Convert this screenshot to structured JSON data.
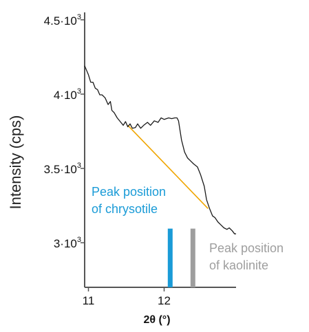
{
  "chart_data": {
    "type": "line",
    "xlabel": "2θ (°)",
    "ylabel": "Intensity (cps)",
    "xlim": [
      10.95,
      12.95
    ],
    "ylim": [
      2700,
      4550
    ],
    "x_ticks": [
      {
        "value": 11,
        "label": "11"
      },
      {
        "value": 12,
        "label": "12"
      }
    ],
    "y_ticks": [
      {
        "value": 3000,
        "mantissa": "3·10",
        "exponent": "3"
      },
      {
        "value": 3500,
        "mantissa": "3.5·10",
        "exponent": "3"
      },
      {
        "value": 4000,
        "mantissa": "4·10",
        "exponent": "3"
      },
      {
        "value": 4500,
        "mantissa": "4.5·10",
        "exponent": "3"
      }
    ],
    "series": [
      {
        "color": "#1a1a1a",
        "x": [
          10.95,
          11.0,
          11.03,
          11.06,
          11.09,
          11.12,
          11.15,
          11.18,
          11.22,
          11.26,
          11.29,
          11.31,
          11.34,
          11.38,
          11.42,
          11.46,
          11.49,
          11.52,
          11.55,
          11.58,
          11.62,
          11.65,
          11.69,
          11.73,
          11.78,
          11.82,
          11.87,
          11.92,
          11.96,
          12.0,
          12.03,
          12.06,
          12.1,
          12.14,
          12.17,
          12.19,
          12.23,
          12.27,
          12.31,
          12.35,
          12.39,
          12.44,
          12.48,
          12.53,
          12.56,
          12.6,
          12.64,
          12.67,
          12.71,
          12.75,
          12.79,
          12.83,
          12.86,
          12.9,
          12.93,
          12.95
        ],
        "y": [
          4190,
          4130,
          4080,
          4080,
          4040,
          4030,
          3995,
          3995,
          3975,
          3930,
          3950,
          3890,
          3875,
          3840,
          3815,
          3790,
          3815,
          3780,
          3800,
          3770,
          3775,
          3800,
          3770,
          3790,
          3810,
          3790,
          3820,
          3810,
          3840,
          3830,
          3835,
          3840,
          3835,
          3840,
          3840,
          3820,
          3690,
          3610,
          3570,
          3550,
          3530,
          3510,
          3460,
          3380,
          3290,
          3230,
          3180,
          3170,
          3140,
          3120,
          3100,
          3090,
          3100,
          3080,
          3060,
          3060
        ]
      }
    ],
    "baseline": {
      "color": "#f0a500",
      "x": [
        11.52,
        12.58
      ],
      "y": [
        3790,
        3230
      ]
    },
    "markers": [
      {
        "x": 12.08,
        "y_top": 3095,
        "color": "#1a9bd7",
        "label_lines": [
          "Peak position",
          "of chrysotile"
        ]
      },
      {
        "x": 12.38,
        "y_top": 3095,
        "color": "#9e9e9e",
        "label_lines": [
          "Peak position",
          "of kaolinite"
        ]
      }
    ]
  }
}
